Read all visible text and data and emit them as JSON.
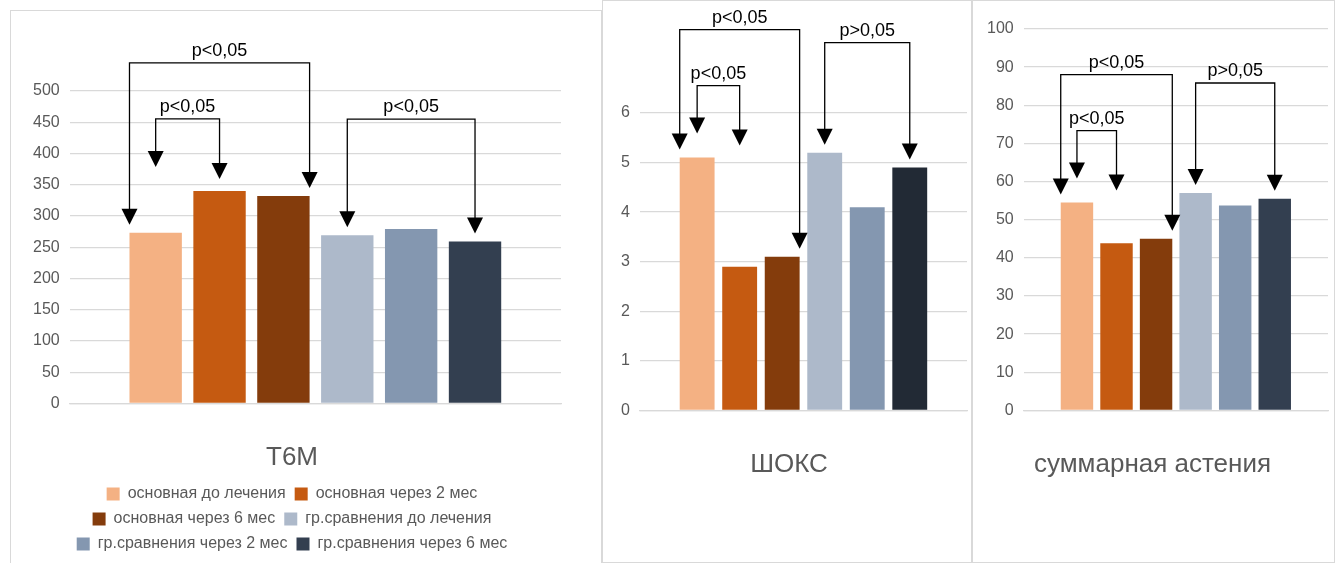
{
  "chart_data": [
    {
      "type": "bar",
      "title": "Т6М",
      "categories": [
        null
      ],
      "ylim": [
        0,
        500
      ],
      "yticks": [
        0,
        50,
        100,
        150,
        200,
        250,
        300,
        350,
        400,
        450,
        500
      ],
      "grid": "y",
      "legend": "bottom",
      "annotations": [
        "p<0,05",
        "p<0,05",
        "p<0,05"
      ],
      "series": [
        {
          "name": "основная до лечения",
          "color": "#f4b183",
          "values": [
            273
          ]
        },
        {
          "name": "основная через 2 мес",
          "color": "#c55a11",
          "values": [
            340
          ]
        },
        {
          "name": "основная через 6 мес",
          "color": "#843c0c",
          "values": [
            332
          ]
        },
        {
          "name": "гр.сравнения до лечения",
          "color": "#adb9ca",
          "values": [
            269
          ]
        },
        {
          "name": "гр.сравнения через 2 мес",
          "color": "#8497b0",
          "values": [
            279
          ]
        },
        {
          "name": "гр.сравнения через 6 мес",
          "color": "#333f50",
          "values": [
            259
          ]
        }
      ]
    },
    {
      "type": "bar",
      "title": "ШОКС",
      "categories": [
        null
      ],
      "ylim": [
        0,
        6
      ],
      "yticks": [
        0,
        1,
        2,
        3,
        4,
        5,
        6
      ],
      "grid": "y",
      "annotations": [
        "p<0,05",
        "p<0,05",
        "p>0,05"
      ],
      "series": [
        {
          "color": "#f4b183",
          "values": [
            5.1
          ]
        },
        {
          "color": "#c55a11",
          "values": [
            2.9
          ]
        },
        {
          "color": "#843c0c",
          "values": [
            3.1
          ]
        },
        {
          "color": "#adb9ca",
          "values": [
            5.2
          ]
        },
        {
          "color": "#8497b0",
          "values": [
            4.1
          ]
        },
        {
          "color": "#222a35",
          "values": [
            4.9
          ]
        }
      ]
    },
    {
      "type": "bar",
      "title": "суммарная астения",
      "categories": [
        null
      ],
      "ylim": [
        0,
        100
      ],
      "yticks": [
        0,
        10,
        20,
        30,
        40,
        50,
        60,
        70,
        80,
        90,
        100
      ],
      "grid": "y",
      "annotations": [
        "p<0,05",
        "p<0,05",
        "p>0,05"
      ],
      "series": [
        {
          "color": "#f4b183",
          "values": [
            54.5
          ]
        },
        {
          "color": "#c55a11",
          "values": [
            43.8
          ]
        },
        {
          "color": "#843c0c",
          "values": [
            45
          ]
        },
        {
          "color": "#adb9ca",
          "values": [
            57
          ]
        },
        {
          "color": "#8497b0",
          "values": [
            53.7
          ]
        },
        {
          "color": "#333f50",
          "values": [
            55.5
          ]
        }
      ]
    }
  ]
}
